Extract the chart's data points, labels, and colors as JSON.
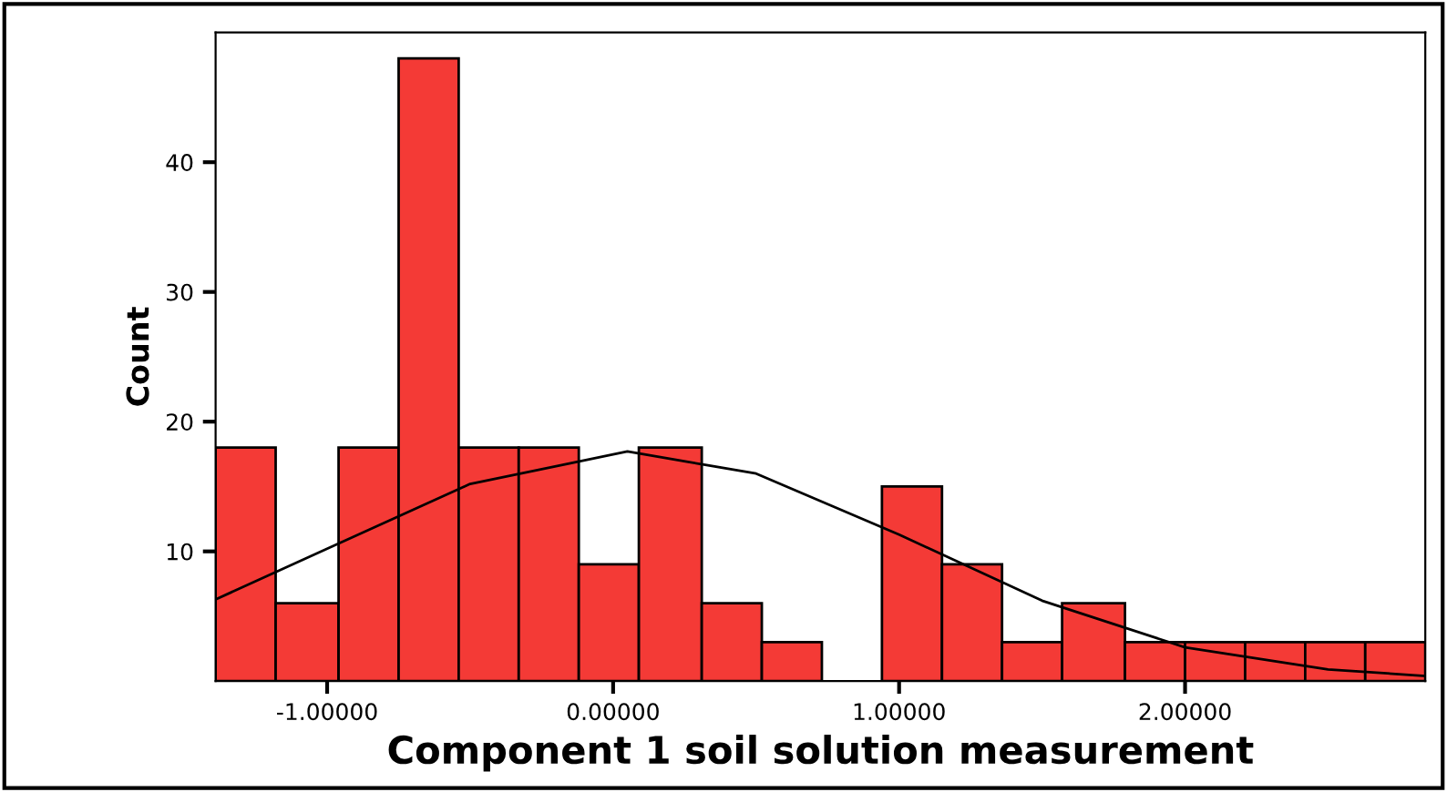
{
  "chart_data": {
    "type": "histogram",
    "xlabel": "Component 1 soil solution measurement",
    "ylabel": "Count",
    "bins": [
      -1.39,
      -1.18,
      -0.96,
      -0.75,
      -0.54,
      -0.33,
      -0.12,
      0.09,
      0.31,
      0.52,
      0.73,
      0.94,
      1.15,
      1.36,
      1.57,
      1.79,
      2.0,
      2.21,
      2.42,
      2.63,
      2.84
    ],
    "values": [
      18,
      6,
      18,
      48,
      18,
      18,
      9,
      18,
      6,
      3,
      0,
      15,
      9,
      3,
      6,
      3,
      3,
      3,
      3,
      3
    ],
    "color": "#f43a36",
    "series": [
      {
        "type": "line",
        "color": "#000000",
        "x": [
          -1.39,
          -1.0,
          -0.5,
          0.05,
          0.5,
          1.0,
          1.5,
          2.0,
          2.5,
          2.84
        ],
        "values": [
          6.3,
          10.2,
          15.2,
          17.7,
          16.0,
          11.3,
          6.2,
          2.6,
          0.9,
          0.4
        ]
      }
    ],
    "xlim": [
      -1.39,
      2.84
    ],
    "ylim": [
      0,
      50
    ],
    "xticks": [
      {
        "value": -1,
        "label": "-1.00000"
      },
      {
        "value": 0,
        "label": "0.00000"
      },
      {
        "value": 1,
        "label": "1.00000"
      },
      {
        "value": 2,
        "label": "2.00000"
      }
    ],
    "yticks": [
      10,
      20,
      30,
      40
    ],
    "grid": false,
    "legend": false
  }
}
